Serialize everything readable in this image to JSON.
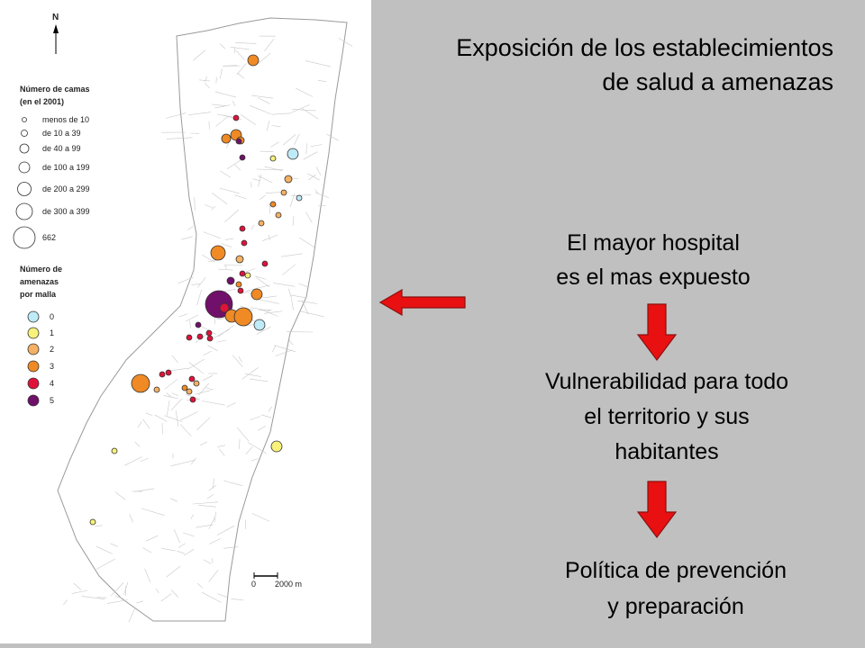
{
  "map": {
    "north_label": "N",
    "legend_beds_title_1": "Número de camas",
    "legend_beds_title_2": "(en el 2001)",
    "beds_classes": [
      "menos de 10",
      "de 10 a 39",
      "de 40 a 99",
      "de 100 a 199",
      "de 200 a 299",
      "de 300 a 399",
      "662"
    ],
    "legend_threats_title_1": "Número de",
    "legend_threats_title_2": "amenazas",
    "legend_threats_title_3": "por malla",
    "threat_classes": [
      "0",
      "1",
      "2",
      "3",
      "4",
      "5"
    ],
    "threat_colors": [
      "#bfeaf7",
      "#f8f27a",
      "#f5b163",
      "#f08a24",
      "#e0123a",
      "#70106a"
    ],
    "scale_zero": "0",
    "scale_label": "2000 m"
  },
  "titles": {
    "line1": "Exposición de los establecimientos",
    "line2": "de salud a amenazas"
  },
  "messages": {
    "m1_line1": "El mayor hospital",
    "m1_line2": "es el mas expuesto",
    "m2_line1": "Vulnerabilidad para todo",
    "m2_line2": "el territorio y sus",
    "m2_line3": "habitantes",
    "m3_line1": "Política de prevención",
    "m3_line2": "y preparación"
  },
  "colors": {
    "arrow_red": "#e81010",
    "background": "#c0c0c0"
  }
}
